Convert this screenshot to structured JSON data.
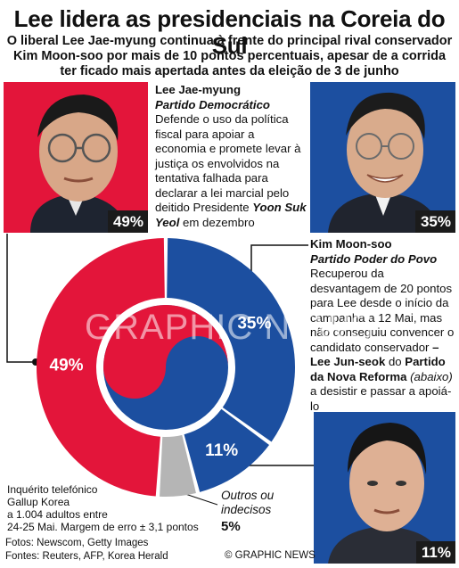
{
  "title": "Lee lidera as presidenciais na Coreia do Sul",
  "subtitle": "O liberal Lee Jae-myung continua à frente do principal rival conservador Kim Moon-soo por mais de 10 pontos percentuais, apesar de a corrida ter ficado mais apertada antes da eleição de 3 de junho",
  "lee": {
    "name": "Lee Jae-myung",
    "party": "Partido Democrático",
    "text_a": "Defende o uso da política fiscal para apoiar a economia e promete levar à justiça os envolvidos na tentativa falhada para declarar a lei marcial pelo deitido Presidente ",
    "text_bold": "Yoon Suk Yeol",
    "text_b": " em dezembro",
    "badge": "49%"
  },
  "kim": {
    "name": "Kim Moon-soo",
    "party": "Partido Poder do Povo",
    "text_a": "Recuperou da desvantagem de 20 pontos para Lee desde o início da campanha a 12 Mai, mas não conseguiu convencer o candidato conservador ",
    "text_bold": "– Lee Jun-seok",
    "text_b": " do ",
    "text_bold2": "Partido da Nova Reforma",
    "text_c": " ",
    "text_italic": "(abaixo)",
    "text_d": " a desistir e passar a apoiá-lo",
    "badge": "35%"
  },
  "jun": {
    "badge": "11%"
  },
  "survey": {
    "line1": "Inquérito telefónico",
    "line2": "Gallup Korea",
    "line3": "a 1.004 adultos entre",
    "line4": "24-25 Mai. Margem de erro ± 3,1 pontos"
  },
  "others": {
    "label_1": "Outros ou",
    "label_2": "indecisos",
    "value": "5%"
  },
  "footer": {
    "photos": "Fotos: Newscom, Getty Images",
    "sources": "Fontes: Reuters, AFP, Korea Herald",
    "copyright": "© GRAPHIC NEWS"
  },
  "watermark": "GRAPHIC NEWS",
  "colors": {
    "red": "#e3153a",
    "blue": "#1c4fa0",
    "grey": "#b5b5b5",
    "dark": "#1b1b1b"
  },
  "chart_data": {
    "type": "pie",
    "title": "Lee lidera as presidenciais na Coreia do Sul",
    "categories": [
      "Lee Jae-myung",
      "Kim Moon-soo",
      "Lee Jun-seok",
      "Outros ou indecisos"
    ],
    "values": [
      49,
      35,
      11,
      5
    ],
    "labels": [
      "49%",
      "35%",
      "11%",
      "5%"
    ],
    "colors": [
      "#e3153a",
      "#1c4fa0",
      "#1c4fa0",
      "#b5b5b5"
    ]
  }
}
